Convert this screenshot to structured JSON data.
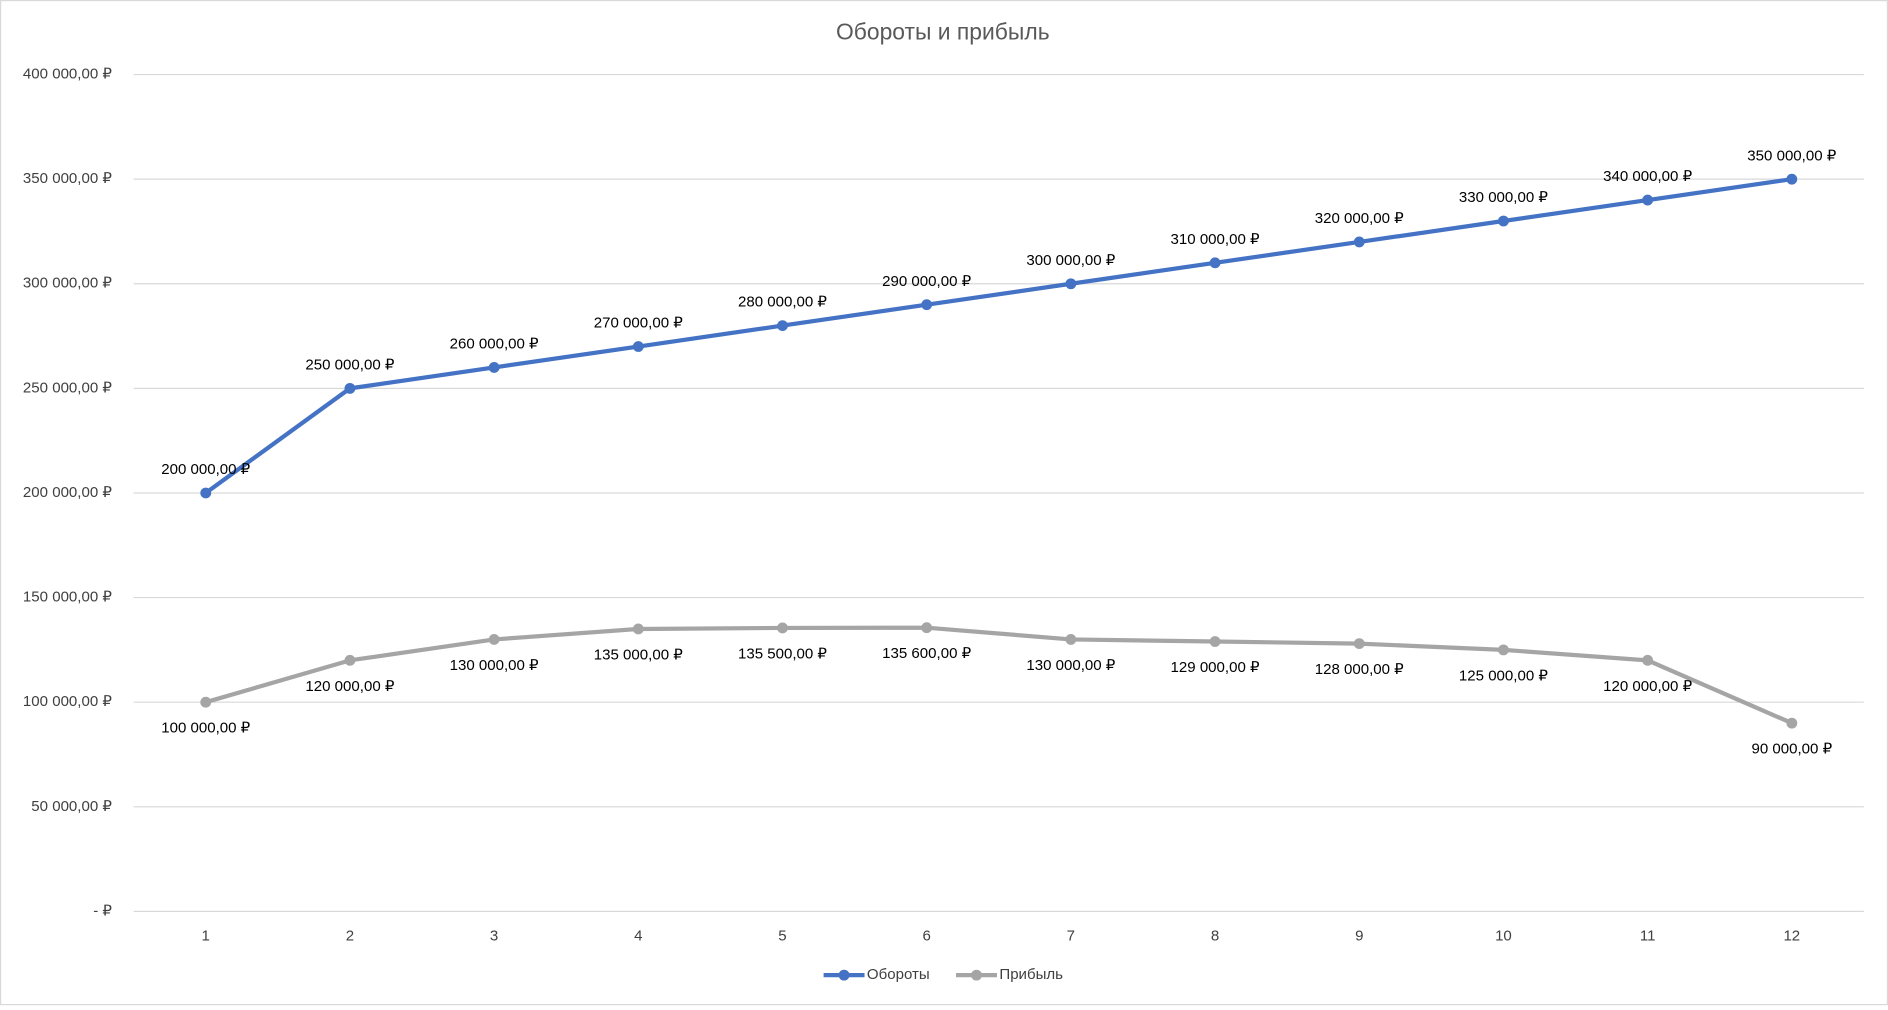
{
  "chart_data": {
    "type": "line",
    "title": "Обороты и прибыль",
    "categories": [
      "1",
      "2",
      "3",
      "4",
      "5",
      "6",
      "7",
      "8",
      "9",
      "10",
      "11",
      "12"
    ],
    "series": [
      {
        "name": "Обороты",
        "color": "#4472c4",
        "values": [
          200000,
          250000,
          260000,
          270000,
          280000,
          290000,
          300000,
          310000,
          320000,
          330000,
          340000,
          350000
        ],
        "value_labels": [
          "200 000,00 ₽",
          "250 000,00 ₽",
          "260 000,00 ₽",
          "270 000,00 ₽",
          "280 000,00 ₽",
          "290 000,00 ₽",
          "300 000,00 ₽",
          "310 000,00 ₽",
          "320 000,00 ₽",
          "330 000,00 ₽",
          "340 000,00 ₽",
          "350 000,00 ₽"
        ]
      },
      {
        "name": "Прибыль",
        "color": "#a5a5a5",
        "values": [
          100000,
          120000,
          130000,
          135000,
          135500,
          135600,
          130000,
          129000,
          128000,
          125000,
          120000,
          90000
        ],
        "value_labels": [
          "100 000,00 ₽",
          "120 000,00 ₽",
          "130 000,00 ₽",
          "135 000,00 ₽",
          "135 500,00 ₽",
          "135 600,00 ₽",
          "130 000,00 ₽",
          "129 000,00 ₽",
          "128 000,00 ₽",
          "125 000,00 ₽",
          "120 000,00 ₽",
          "90 000,00 ₽"
        ]
      }
    ],
    "ylim": [
      0,
      400000
    ],
    "yticks": [
      {
        "value": 0,
        "label": "-   ₽"
      },
      {
        "value": 50000,
        "label": "50 000,00 ₽"
      },
      {
        "value": 100000,
        "label": "100 000,00 ₽"
      },
      {
        "value": 150000,
        "label": "150 000,00 ₽"
      },
      {
        "value": 200000,
        "label": "200 000,00 ₽"
      },
      {
        "value": 250000,
        "label": "250 000,00 ₽"
      },
      {
        "value": 300000,
        "label": "300 000,00 ₽"
      },
      {
        "value": 350000,
        "label": "350 000,00 ₽"
      },
      {
        "value": 400000,
        "label": "400 000,00 ₽"
      }
    ],
    "grid": true,
    "legend": "bottom"
  }
}
